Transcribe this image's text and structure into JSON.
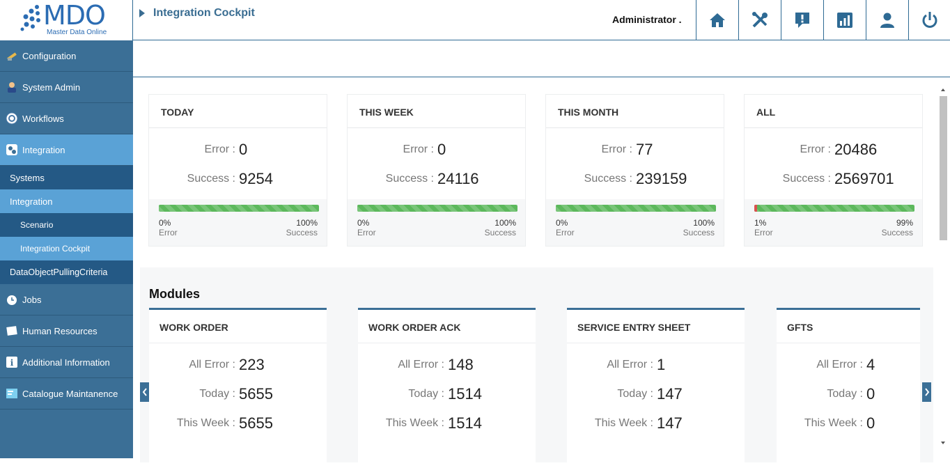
{
  "logo": {
    "text": "MDO",
    "subtitle": "Master Data Online"
  },
  "header": {
    "breadcrumb": "Integration Cockpit",
    "user": "Administrator .",
    "icons": [
      "home-icon",
      "tools-icon",
      "alert-icon",
      "chart-icon",
      "user-icon",
      "power-icon"
    ]
  },
  "sidebar": {
    "items": [
      {
        "label": "Configuration",
        "icon": "configuration-icon"
      },
      {
        "label": "System Admin",
        "icon": "system-admin-icon"
      },
      {
        "label": "Workflows",
        "icon": "workflows-icon"
      },
      {
        "label": "Integration",
        "icon": "integration-icon"
      },
      {
        "label": "Jobs",
        "icon": "jobs-icon"
      },
      {
        "label": "Human Resources",
        "icon": "human-resources-icon"
      },
      {
        "label": "Additional Information",
        "icon": "info-icon"
      },
      {
        "label": "Catalogue Maintanence",
        "icon": "catalogue-icon"
      }
    ],
    "sub": {
      "systems": "Systems",
      "integration": "Integration",
      "scenario": "Scenario",
      "cockpit": "Integration Cockpit",
      "dopc": "DataObjectPullingCriteria"
    }
  },
  "stats": {
    "labels": {
      "error": "Error :",
      "success": "Success :",
      "error_word": "Error",
      "success_word": "Success"
    },
    "cards": [
      {
        "title": "TODAY",
        "error": "0",
        "success": "9254",
        "error_pct": "0%",
        "success_pct": "100%",
        "error_fraction": 0
      },
      {
        "title": "THIS WEEK",
        "error": "0",
        "success": "24116",
        "error_pct": "0%",
        "success_pct": "100%",
        "error_fraction": 0
      },
      {
        "title": "THIS MONTH",
        "error": "77",
        "success": "239159",
        "error_pct": "0%",
        "success_pct": "100%",
        "error_fraction": 0
      },
      {
        "title": "ALL",
        "error": "20486",
        "success": "2569701",
        "error_pct": "1%",
        "success_pct": "99%",
        "error_fraction": 0.01
      }
    ]
  },
  "modules": {
    "title": "Modules",
    "labels": {
      "all_error": "All Error :",
      "today": "Today :",
      "this_week": "This Week :"
    },
    "cards": [
      {
        "title": "WORK ORDER",
        "all_error": "223",
        "today": "5655",
        "this_week": "5655"
      },
      {
        "title": "WORK ORDER ACK",
        "all_error": "148",
        "today": "1514",
        "this_week": "1514"
      },
      {
        "title": "SERVICE ENTRY SHEET",
        "all_error": "1",
        "today": "147",
        "this_week": "147"
      },
      {
        "title": "GFTS",
        "all_error": "4",
        "today": "0",
        "this_week": "0"
      }
    ]
  }
}
